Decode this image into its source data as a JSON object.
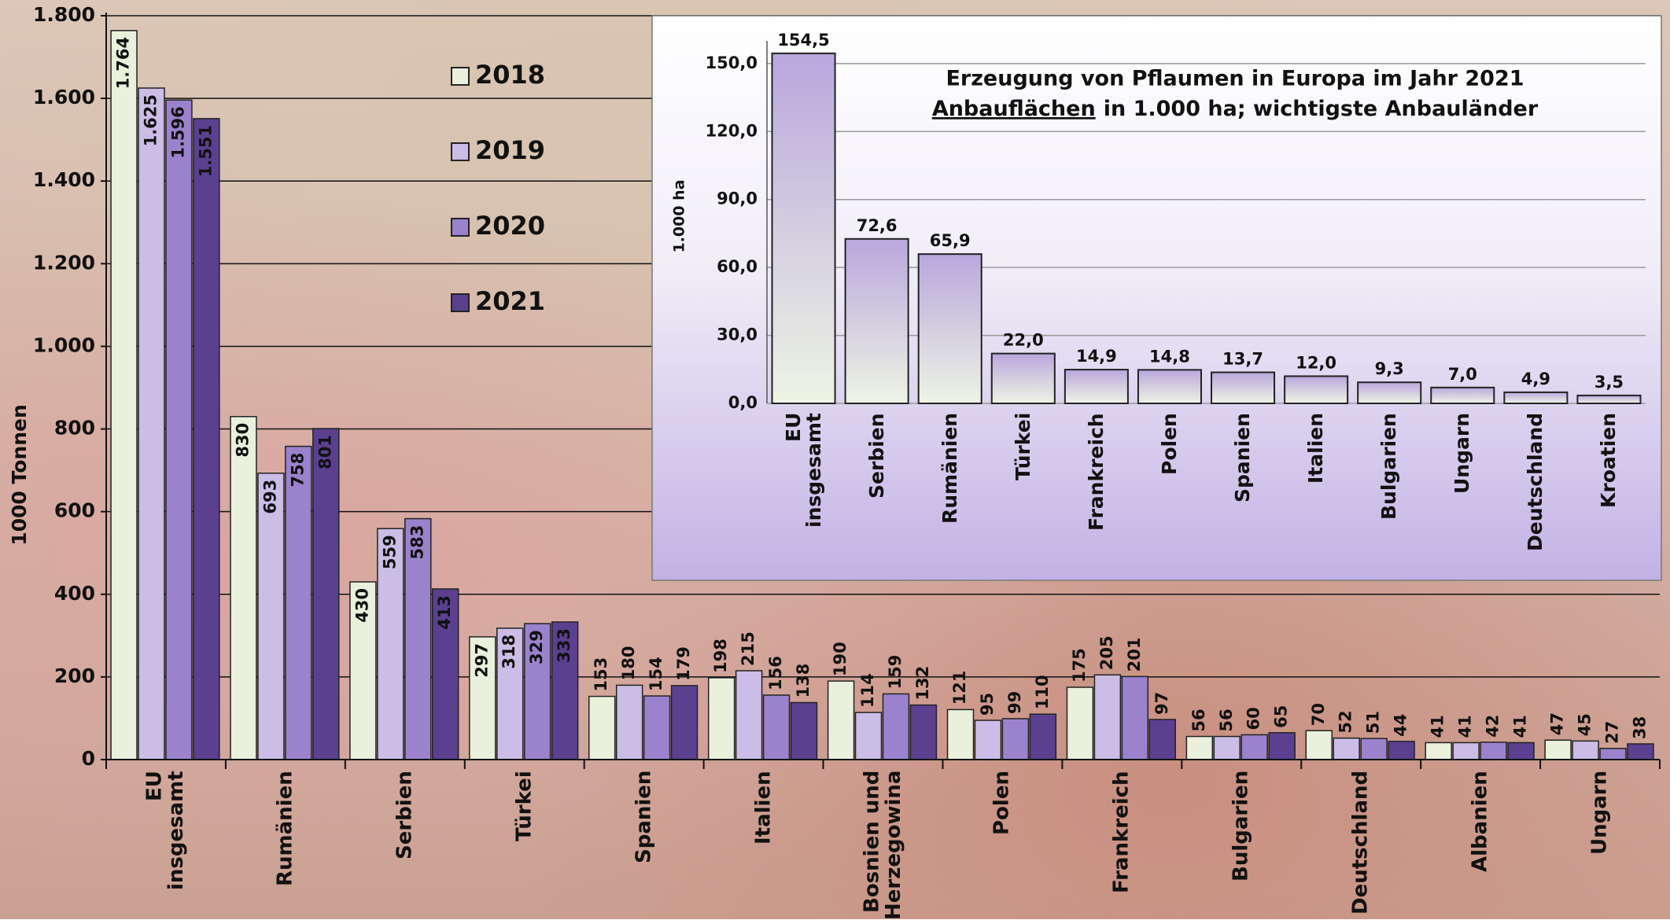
{
  "chart_data": [
    {
      "type": "bar",
      "y_label": "1000 Tonnen",
      "categories": [
        "EU insgesamt",
        "Rumänien",
        "Serbien",
        "Türkei",
        "Spanien",
        "Italien",
        "Bosnien und Herzegowina",
        "Polen",
        "Frankreich",
        "Bulgarien",
        "Deutschland",
        "Albanien",
        "Ungarn"
      ],
      "series": [
        {
          "name": "2018",
          "color": "#e9f1dd",
          "values": [
            1764,
            830,
            430,
            297,
            153,
            198,
            190,
            121,
            175,
            56,
            70,
            41,
            47
          ],
          "value_labels": [
            "1.764",
            "830",
            "430",
            "297",
            "153",
            "198",
            "190",
            "121",
            "175",
            "56",
            "70",
            "41",
            "47"
          ]
        },
        {
          "name": "2019",
          "color": "#cbbde6",
          "values": [
            1625,
            693,
            559,
            318,
            180,
            215,
            114,
            95,
            205,
            56,
            52,
            41,
            45
          ],
          "value_labels": [
            "1.625",
            "693",
            "559",
            "318",
            "180",
            "215",
            "114",
            "95",
            "205",
            "56",
            "52",
            "41",
            "45"
          ]
        },
        {
          "name": "2020",
          "color": "#9b82cc",
          "values": [
            1596,
            758,
            583,
            329,
            154,
            156,
            159,
            99,
            201,
            60,
            51,
            42,
            27
          ],
          "value_labels": [
            "1.596",
            "758",
            "583",
            "329",
            "154",
            "156",
            "159",
            "99",
            "201",
            "60",
            "51",
            "42",
            "27"
          ]
        },
        {
          "name": "2021",
          "color": "#5b4090",
          "values": [
            1551,
            801,
            413,
            333,
            179,
            138,
            132,
            110,
            97,
            65,
            44,
            41,
            38
          ],
          "value_labels": [
            "1.551",
            "801",
            "413",
            "333",
            "179",
            "138",
            "132",
            "110",
            "97",
            "65",
            "44",
            "41",
            "38"
          ]
        }
      ],
      "ylim": [
        0,
        1800
      ],
      "yticks": [
        0,
        200,
        400,
        600,
        800,
        {
          "value": 1000,
          "label": "1.000"
        },
        {
          "value": 1200,
          "label": "1.200"
        },
        {
          "value": 1400,
          "label": "1.400"
        },
        {
          "value": 1600,
          "label": "1.600"
        },
        {
          "value": 1800,
          "label": "1.800"
        }
      ],
      "grid": true
    },
    {
      "type": "bar",
      "title": "Erzeugung von Pflaumen in Europa im Jahr 2021",
      "subtitle": [
        "Anbauflächen",
        "in 1.000 ha; wichtigste Anbauländer"
      ],
      "y_label": "1.000 ha",
      "categories": [
        "EU insgesamt",
        "Serbien",
        "Rumänien",
        "Türkei",
        "Frankreich",
        "Polen",
        "Spanien",
        "Italien",
        "Bulgarien",
        "Ungarn",
        "Deutschland",
        "Kroatien"
      ],
      "values": [
        154.5,
        72.6,
        65.9,
        22.0,
        14.9,
        14.8,
        13.7,
        12.0,
        9.3,
        7.0,
        4.9,
        3.5
      ],
      "value_labels": [
        "154,5",
        "72,6",
        "65,9",
        "22,0",
        "14,9",
        "14,8",
        "13,7",
        "12,0",
        "9,3",
        "7,0",
        "4,9",
        "3,5"
      ],
      "color": "#b9a7dd",
      "ylim": [
        0,
        160
      ],
      "yticks": [
        {
          "value": 0,
          "label": "0,0"
        },
        {
          "value": 30,
          "label": "30,0"
        },
        {
          "value": 60,
          "label": "60,0"
        },
        {
          "value": 90,
          "label": "90,0"
        },
        {
          "value": 120,
          "label": "120,0"
        },
        {
          "value": 150,
          "label": "150,0"
        }
      ],
      "grid": true
    }
  ]
}
